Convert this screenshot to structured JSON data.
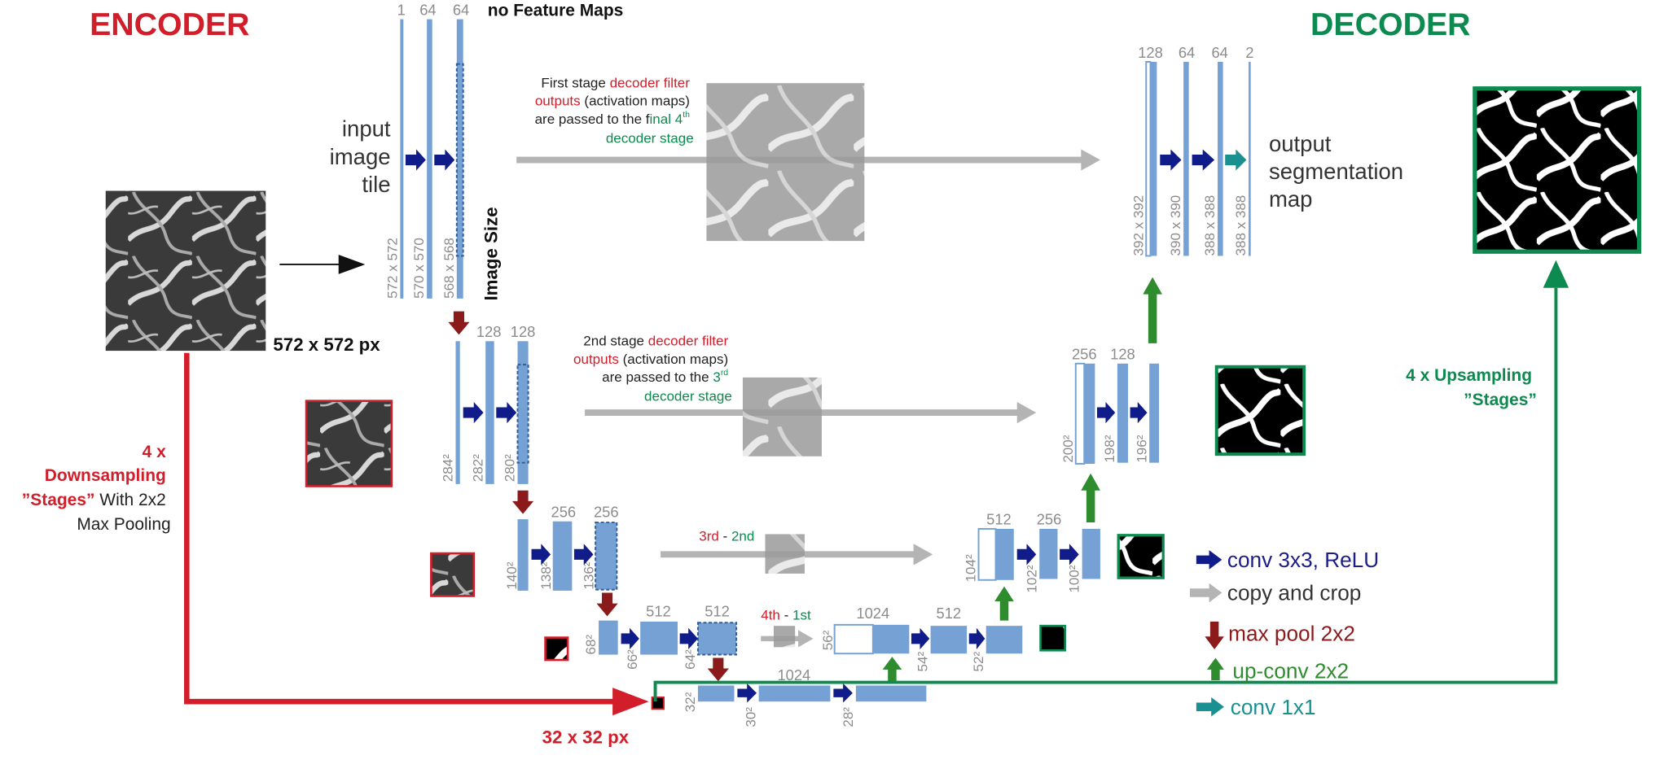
{
  "titles": {
    "encoder": "ENCODER",
    "decoder": "DECODER"
  },
  "header": {
    "feature_maps": "no Feature Maps",
    "image_size": "Image Size"
  },
  "input": {
    "label_lines": [
      "input",
      "image",
      "tile"
    ],
    "size": "572 x 572 px"
  },
  "output": {
    "label_lines": [
      "output",
      "segmentation",
      "map"
    ]
  },
  "bottleneck_size": "32 x 32 px",
  "side_labels": {
    "down": {
      "line1": "4 x",
      "line2": "Downsampling",
      "line3a": "”Stages”",
      "line3b": " With 2x2",
      "line4": "Max Pooling"
    },
    "up": {
      "line1": "4 x Upsampling",
      "line2": "”Stages”"
    }
  },
  "annotations": {
    "stage1": {
      "a": "First stage ",
      "b": "decoder filter",
      "c": "outputs",
      "d": " (activation maps)",
      "e": "are passed to the f",
      "f": "inal 4",
      "sup": "th",
      "g": "decoder stage"
    },
    "stage2": {
      "a": "2nd stage ",
      "b": "decoder filter",
      "c": "outputs",
      "d": " (activation maps)",
      "e": "are passed to the ",
      "f": "3",
      "sup": "rd",
      "g": "decoder stage"
    },
    "stage3": {
      "a": "3rd",
      "sep": " - ",
      "b": "2nd"
    },
    "stage4": {
      "a": "4th",
      "sep": " - ",
      "b": "1st"
    }
  },
  "feature_counts": {
    "l1": [
      "1",
      "64",
      "64"
    ],
    "l2": [
      "128",
      "128"
    ],
    "l3": [
      "256",
      "256"
    ],
    "l4": [
      "512",
      "512"
    ],
    "l5": "1024",
    "d4": [
      "1024",
      "512"
    ],
    "d3": [
      "512",
      "256"
    ],
    "d2": [
      "256",
      "128"
    ],
    "d1": [
      "128",
      "64",
      "64",
      "2"
    ]
  },
  "sizes": {
    "l1": [
      "572 x 572",
      "570 x 570",
      "568 x 568"
    ],
    "l2": [
      "284²",
      "282²",
      "280²"
    ],
    "l3": [
      "140²",
      "138²",
      "136²"
    ],
    "l4": [
      "68²",
      "66²",
      "64²"
    ],
    "l5": [
      "32²",
      "30²",
      "28²"
    ],
    "d4": [
      "56²",
      "54²",
      "52²"
    ],
    "d3": [
      "104²",
      "102²",
      "100²"
    ],
    "d2": [
      "200²",
      "198²",
      "196²"
    ],
    "d1": [
      "392 x 392",
      "390 x 390",
      "388 x 388",
      "388 x 388"
    ]
  },
  "legend": [
    {
      "icon": "arrow-right-icon",
      "label": "conv 3x3, ReLU",
      "color": "#1c1c8a"
    },
    {
      "icon": "arrow-right-icon",
      "label": "copy and crop",
      "color": "#333333"
    },
    {
      "icon": "arrow-down-icon",
      "label": "max pool 2x2",
      "color": "#8b1a1a"
    },
    {
      "icon": "arrow-up-icon",
      "label": "up-conv 2x2",
      "color": "#2e8b2e"
    },
    {
      "icon": "arrow-right-icon",
      "label": "conv 1x1",
      "color": "#1a9090"
    }
  ],
  "colors": {
    "encoder_red": "#d21e2a",
    "decoder_green": "#0d8a4f",
    "block_blue": "#76a1d5",
    "conv_arrow": "#0f1c8a",
    "pool_arrow": "#8b1a1a",
    "upconv_arrow": "#2e8b2e",
    "copy_arrow": "#b4b4b4",
    "conv1x1_arrow": "#1a9090"
  }
}
